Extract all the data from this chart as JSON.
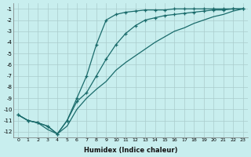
{
  "xlabel": "Humidex (Indice chaleur)",
  "bg_color": "#c8eeee",
  "grid_color": "#aacccc",
  "line_color": "#1a6b6b",
  "xlim_min": -0.5,
  "xlim_max": 23.5,
  "ylim_min": -12.5,
  "ylim_max": -0.5,
  "yticks": [
    -1,
    -2,
    -3,
    -4,
    -5,
    -6,
    -7,
    -8,
    -9,
    -10,
    -11,
    -12
  ],
  "xticks": [
    0,
    1,
    2,
    3,
    4,
    5,
    6,
    7,
    8,
    9,
    10,
    11,
    12,
    13,
    14,
    15,
    16,
    17,
    18,
    19,
    20,
    21,
    22,
    23
  ],
  "line1_x": [
    0,
    1,
    2,
    3,
    4,
    5,
    6,
    7,
    8,
    9,
    10,
    11,
    12,
    13,
    14,
    15,
    16,
    17,
    18,
    19,
    20,
    21,
    22,
    23
  ],
  "line1_y": [
    -10.5,
    -11.0,
    -11.2,
    -11.5,
    -12.2,
    -11.0,
    -9.0,
    -7.0,
    -4.2,
    -2.0,
    -1.5,
    -1.3,
    -1.2,
    -1.1,
    -1.1,
    -1.1,
    -1.0,
    -1.0,
    -1.0,
    -1.0,
    -1.0,
    -1.0,
    -1.0,
    -1.0
  ],
  "line2_x": [
    0,
    1,
    2,
    3,
    4,
    5,
    6,
    7,
    8,
    9,
    10,
    11,
    12,
    13,
    14,
    15,
    16,
    17,
    18,
    19,
    20,
    21,
    22,
    23
  ],
  "line2_y": [
    -10.5,
    -11.0,
    -11.2,
    -11.5,
    -12.2,
    -11.0,
    -9.3,
    -8.5,
    -7.0,
    -5.5,
    -4.2,
    -3.2,
    -2.5,
    -2.0,
    -1.8,
    -1.6,
    -1.5,
    -1.4,
    -1.3,
    -1.2,
    -1.1,
    -1.1,
    -1.0,
    -1.0
  ],
  "line3_x": [
    0,
    1,
    2,
    3,
    4,
    5,
    6,
    7,
    8,
    9,
    10,
    11,
    12,
    13,
    14,
    15,
    16,
    17,
    18,
    19,
    20,
    21,
    22,
    23
  ],
  "line3_y": [
    -10.5,
    -11.0,
    -11.2,
    -11.8,
    -12.2,
    -11.5,
    -10.0,
    -9.0,
    -8.2,
    -7.5,
    -6.5,
    -5.8,
    -5.2,
    -4.6,
    -4.0,
    -3.5,
    -3.0,
    -2.7,
    -2.3,
    -2.0,
    -1.7,
    -1.5,
    -1.2,
    -1.0
  ]
}
